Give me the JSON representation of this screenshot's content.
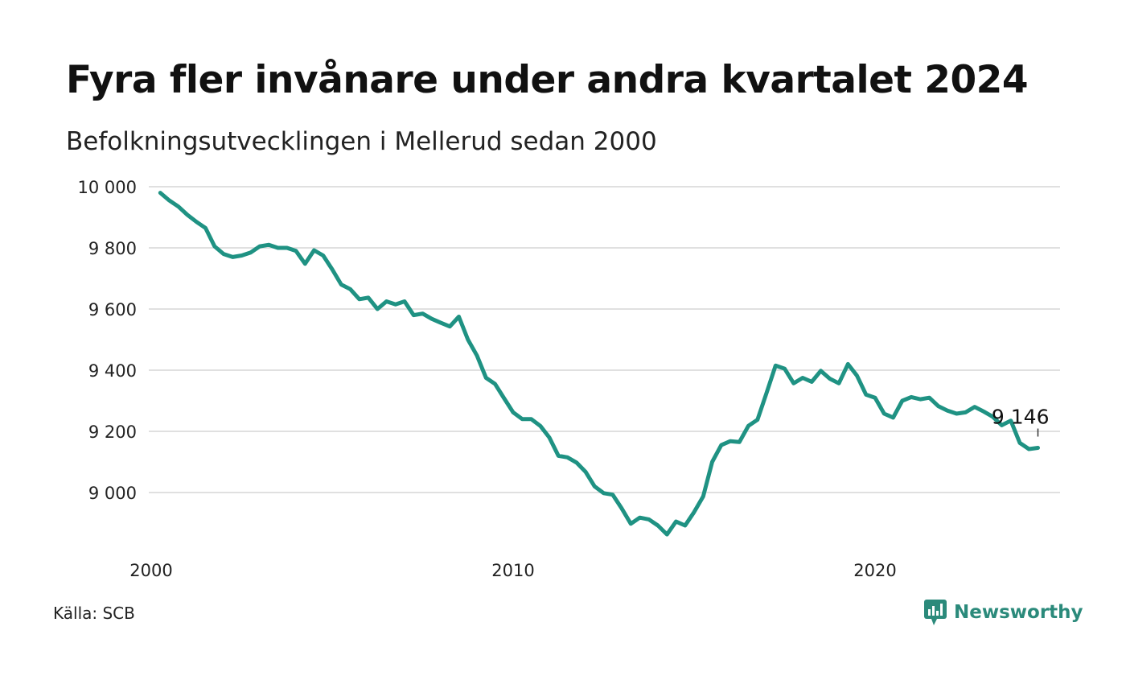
{
  "header": {
    "title": "Fyra fler invånare under andra kvartalet 2024",
    "subtitle": "Befolkningsutvecklingen i Mellerud sedan 2000"
  },
  "footer": {
    "source": "Källa: SCB",
    "brand": "Newsworthy",
    "brand_icon": "newsworthy-logo-icon"
  },
  "colors": {
    "line": "#1f9283",
    "grid": "#e0e0e0",
    "brand": "#2b8a7b"
  },
  "chart_data": {
    "type": "line",
    "title": "Fyra fler invånare under andra kvartalet 2024",
    "subtitle": "Befolkningsutvecklingen i Mellerud sedan 2000",
    "xlabel": "",
    "ylabel": "",
    "x_ticks": [
      2000,
      2010,
      2020
    ],
    "y_ticks": [
      9000,
      9200,
      9400,
      9600,
      9800,
      10000
    ],
    "y_tick_labels": [
      "9 000",
      "9 200",
      "9 400",
      "9 600",
      "9 800",
      "10 000"
    ],
    "ylim": [
      8830,
      10000
    ],
    "xlim": [
      2000,
      2025.5
    ],
    "grid": true,
    "last_value_label": "9 146",
    "series": [
      {
        "x": [
          2000.25,
          2000.5,
          2000.75,
          2001.0,
          2001.25,
          2001.5,
          2001.75,
          2002.0,
          2002.25,
          2002.5,
          2002.75,
          2003.0,
          2003.25,
          2003.5,
          2003.75,
          2004.0,
          2004.25,
          2004.5,
          2004.75,
          2005.0,
          2005.25,
          2005.5,
          2005.75,
          2006.0,
          2006.25,
          2006.5,
          2006.75,
          2007.0,
          2007.25,
          2007.5,
          2007.75,
          2008.0,
          2008.25,
          2008.5,
          2008.75,
          2009.0,
          2009.25,
          2009.5,
          2009.75,
          2010.0,
          2010.25,
          2010.5,
          2010.75,
          2011.0,
          2011.25,
          2011.5,
          2011.75,
          2012.0,
          2012.25,
          2012.5,
          2012.75,
          2013.0,
          2013.25,
          2013.5,
          2013.75,
          2014.0,
          2014.25,
          2014.5,
          2014.75,
          2015.0,
          2015.25,
          2015.5,
          2015.75,
          2016.0,
          2016.25,
          2016.5,
          2016.75,
          2017.0,
          2017.25,
          2017.5,
          2017.75,
          2018.0,
          2018.25,
          2018.5,
          2018.75,
          2019.0,
          2019.25,
          2019.5,
          2019.75,
          2020.0,
          2020.25,
          2020.5,
          2020.75,
          2021.0,
          2021.25,
          2021.5,
          2021.75,
          2022.0,
          2022.25,
          2022.5,
          2022.75,
          2023.0,
          2023.25,
          2023.5,
          2023.75,
          2024.0,
          2024.25,
          2024.5
        ],
        "y": [
          9980,
          9955,
          9935,
          9908,
          9885,
          9865,
          9805,
          9780,
          9770,
          9775,
          9785,
          9805,
          9810,
          9800,
          9800,
          9790,
          9748,
          9792,
          9775,
          9730,
          9680,
          9665,
          9632,
          9637,
          9600,
          9625,
          9615,
          9625,
          9580,
          9585,
          9568,
          9555,
          9543,
          9575,
          9500,
          9448,
          9375,
          9355,
          9308,
          9262,
          9240,
          9240,
          9218,
          9180,
          9120,
          9115,
          9098,
          9068,
          9020,
          8998,
          8993,
          8948,
          8898,
          8918,
          8912,
          8892,
          8863,
          8905,
          8892,
          8936,
          8987,
          9100,
          9155,
          9168,
          9165,
          9218,
          9238,
          9325,
          9415,
          9405,
          9357,
          9375,
          9362,
          9398,
          9372,
          9357,
          9420,
          9382,
          9320,
          9310,
          9258,
          9245,
          9300,
          9312,
          9305,
          9310,
          9282,
          9268,
          9258,
          9262,
          9280,
          9265,
          9248,
          9220,
          9235,
          9162,
          9142,
          9146
        ]
      }
    ]
  }
}
